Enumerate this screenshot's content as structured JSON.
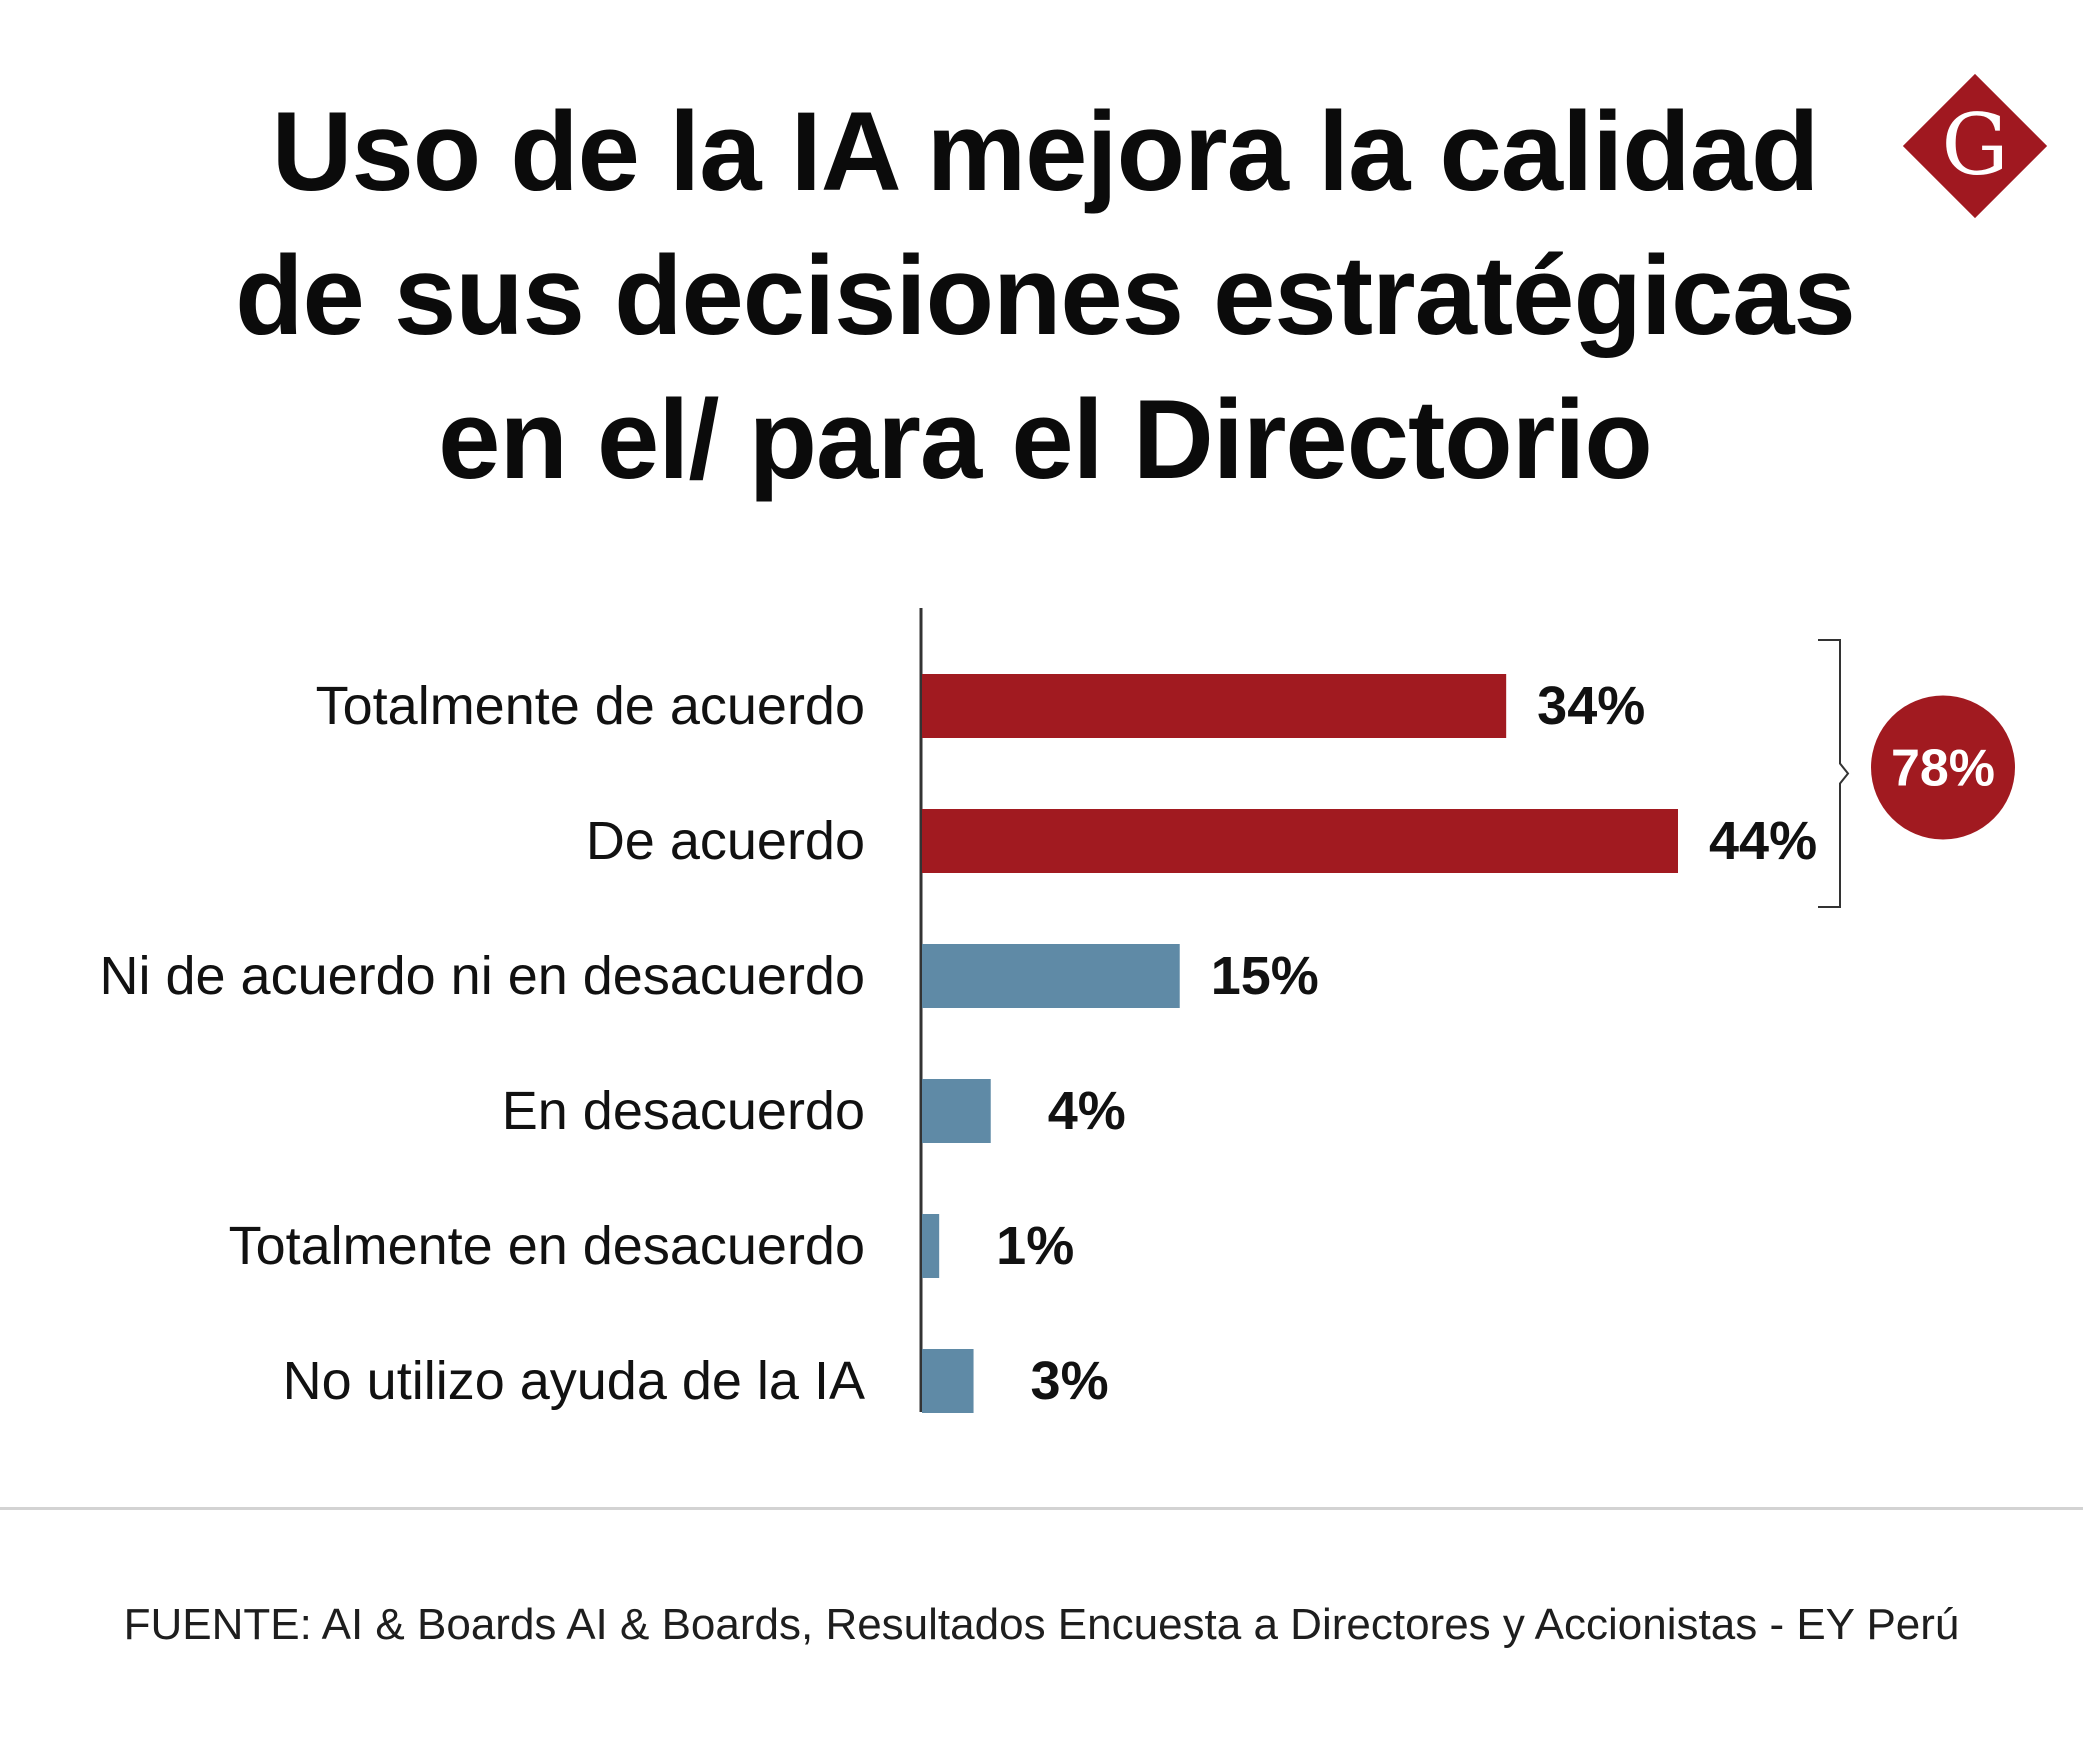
{
  "title_lines": [
    "Uso de la IA mejora la calidad",
    "de sus decisiones estratégicas",
    "en el/ para el Directorio"
  ],
  "logo": {
    "letter": "G",
    "color": "#a01820"
  },
  "colors": {
    "agree": "#a11a20",
    "neutral": "#5f8aa6",
    "text": "#111111",
    "axis": "#333333"
  },
  "chart_data": {
    "type": "bar",
    "orientation": "horizontal",
    "categories": [
      "Totalmente de acuerdo",
      "De acuerdo",
      "Ni de acuerdo ni en desacuerdo",
      "En desacuerdo",
      "Totalmente en desacuerdo",
      "No utilizo ayuda de la IA"
    ],
    "values": [
      34,
      44,
      15,
      4,
      1,
      3
    ],
    "value_labels": [
      "34%",
      "44%",
      "15%",
      "4%",
      "1%",
      "3%"
    ],
    "bar_color_keys": [
      "agree",
      "agree",
      "neutral",
      "neutral",
      "neutral",
      "neutral"
    ],
    "unit": "%",
    "xlim": [
      0,
      44
    ],
    "grid": false,
    "legend": "none",
    "annotation": {
      "text": "78%",
      "bracket_categories": [
        0,
        1
      ]
    }
  },
  "source": "FUENTE: AI & Boards AI & Boards, Resultados Encuesta a Directores y Accionistas - EY Perú"
}
